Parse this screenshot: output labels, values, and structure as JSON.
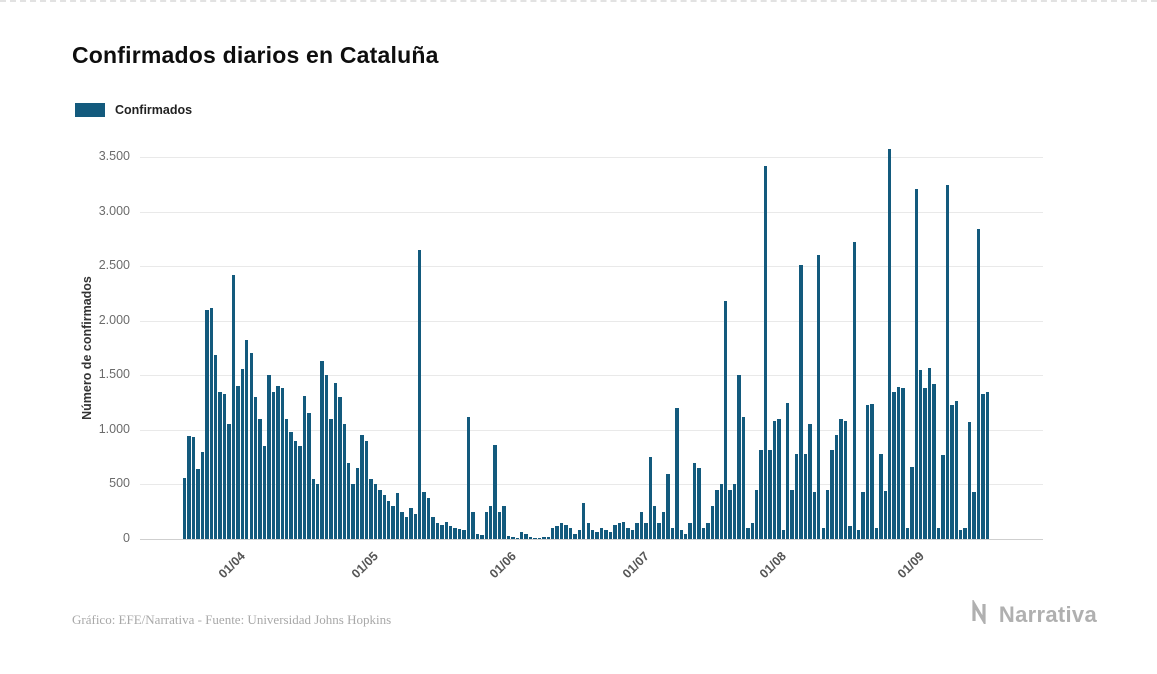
{
  "page": {
    "title": "Confirmados diarios en Cataluña",
    "legend": {
      "label": "Confirmados"
    },
    "y_axis_title": "Número de confirmados",
    "footer": {
      "credit": "Gráfico: EFE/Narrativa - Fuente: Universidad Johns Hopkins",
      "brand": "Narrativa"
    }
  },
  "chart_data": {
    "type": "bar",
    "title": "Confirmados diarios en Cataluña",
    "series_name": "Confirmados",
    "xlabel": "",
    "ylabel": "Número de confirmados",
    "ylim": [
      0,
      3500
    ],
    "grid": true,
    "legend_position": "top-left",
    "bar_color": "#135A7D",
    "y_ticks": [
      0,
      500,
      1000,
      1500,
      2000,
      2500,
      3000,
      3500
    ],
    "y_tick_labels": [
      "0",
      "500",
      "1.000",
      "1.500",
      "2.000",
      "2.500",
      "3.000",
      "3.500"
    ],
    "x_tick_labels": [
      "01/04",
      "01/05",
      "01/06",
      "01/07",
      "01/08",
      "01/09"
    ],
    "x_tick_indices": [
      12,
      42,
      73,
      103,
      134,
      165
    ],
    "values": [
      560,
      940,
      930,
      640,
      800,
      2100,
      2120,
      1690,
      1350,
      1330,
      1050,
      2420,
      1400,
      1560,
      1820,
      1700,
      1300,
      1100,
      850,
      1500,
      1350,
      1400,
      1380,
      1100,
      980,
      900,
      850,
      1310,
      1150,
      550,
      500,
      1630,
      1500,
      1100,
      1430,
      1300,
      1050,
      700,
      500,
      650,
      950,
      900,
      550,
      500,
      450,
      400,
      350,
      300,
      420,
      250,
      200,
      280,
      230,
      2650,
      430,
      380,
      200,
      150,
      130,
      160,
      120,
      100,
      90,
      80,
      1120,
      250,
      50,
      40,
      250,
      300,
      860,
      250,
      300,
      30,
      20,
      10,
      60,
      50,
      20,
      10,
      5,
      15,
      20,
      100,
      120,
      150,
      130,
      100,
      50,
      80,
      330,
      150,
      80,
      60,
      100,
      80,
      60,
      130,
      150,
      160,
      100,
      80,
      150,
      250,
      150,
      750,
      300,
      150,
      250,
      600,
      100,
      1200,
      80,
      50,
      150,
      700,
      650,
      100,
      150,
      300,
      450,
      500,
      2180,
      450,
      500,
      1500,
      1120,
      100,
      150,
      450,
      820,
      3420,
      820,
      1080,
      1100,
      80,
      1250,
      450,
      780,
      2510,
      780,
      1050,
      430,
      2600,
      100,
      450,
      820,
      950,
      1100,
      1080,
      120,
      2720,
      80,
      430,
      1230,
      1240,
      100,
      780,
      440,
      3570,
      1350,
      1390,
      1380,
      100,
      660,
      3210,
      1550,
      1380,
      1570,
      1420,
      100,
      770,
      3240,
      1230,
      1260,
      80,
      100,
      1070,
      430,
      2840,
      1330,
      1350
    ]
  }
}
